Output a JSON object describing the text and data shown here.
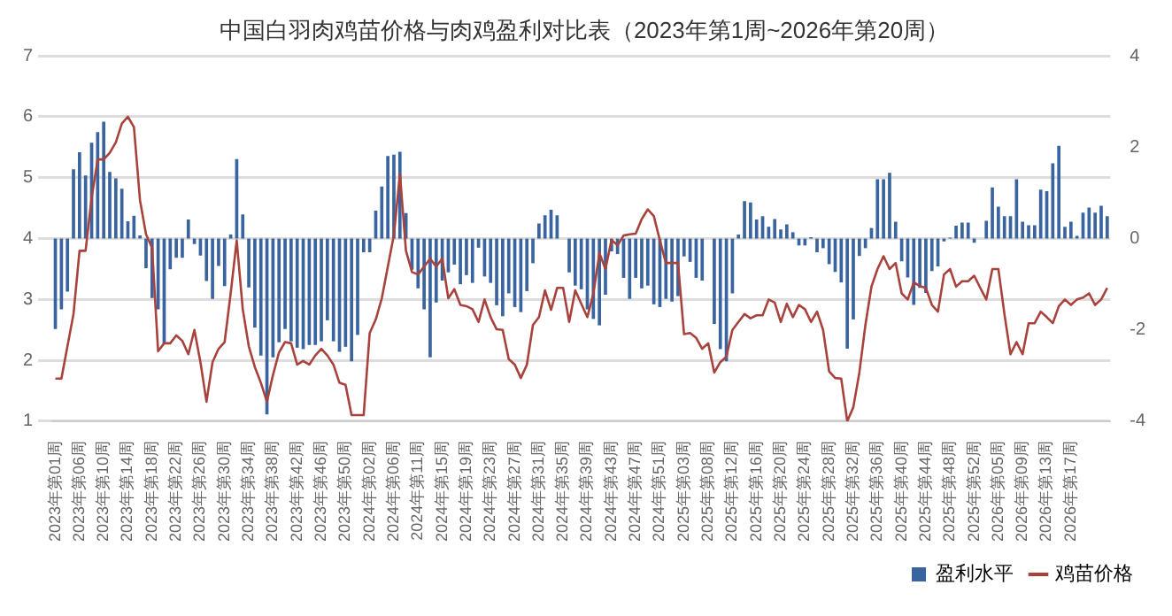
{
  "chart_data": {
    "type": "bar",
    "title": "中国白羽肉鸡苗价格与肉鸡盈利对比表（2023年第1周~2026年第20周）",
    "categories": [
      "2023年第01周",
      null,
      null,
      null,
      "2023年第06周",
      null,
      null,
      null,
      "2023年第10周",
      null,
      null,
      null,
      "2023年第14周",
      null,
      null,
      null,
      "2023年第18周",
      null,
      null,
      null,
      "2023年第22周",
      null,
      null,
      null,
      "2023年第26周",
      null,
      null,
      null,
      "2023年第30周",
      null,
      null,
      null,
      "2023年第34周",
      null,
      null,
      null,
      "2023年第38周",
      null,
      null,
      null,
      "2023年第42周",
      null,
      null,
      null,
      "2023年第46周",
      null,
      null,
      null,
      "2023年第50周",
      null,
      null,
      null,
      "2024年第02周",
      null,
      null,
      null,
      "2024年第06周",
      null,
      null,
      null,
      "2024年第11周",
      null,
      null,
      null,
      "2024年第15周",
      null,
      null,
      null,
      "2024年第19周",
      null,
      null,
      null,
      "2024年第23周",
      null,
      null,
      null,
      "2024年第27周",
      null,
      null,
      null,
      "2024年第31周",
      null,
      null,
      null,
      "2024年第35周",
      null,
      null,
      null,
      "2024年第39周",
      null,
      null,
      null,
      "2024年第43周",
      null,
      null,
      null,
      "2024年第47周",
      null,
      null,
      null,
      "2024年第51周",
      null,
      null,
      null,
      "2025年第03周",
      null,
      null,
      null,
      "2025年第08周",
      null,
      null,
      null,
      "2025年第12周",
      null,
      null,
      null,
      "2025年第16周",
      null,
      null,
      null,
      "2025年第20周",
      null,
      null,
      null,
      "2025年第24周",
      null,
      null,
      null,
      "2025年第28周",
      null,
      null,
      null,
      "2025年第32周",
      null,
      null,
      null,
      "2025年第36周",
      null,
      null,
      null,
      "2025年第40周",
      null,
      null,
      null,
      "2025年第44周",
      null,
      null,
      null,
      "2025年第48周",
      null,
      null,
      null,
      "2025年第52周",
      null,
      null,
      null,
      "2026年第05周",
      null,
      null,
      null,
      "2026年第09周",
      null,
      null,
      null,
      "2026年第13周",
      null,
      null,
      null,
      "2026年第17周",
      null,
      null,
      null,
      null,
      null,
      null
    ],
    "series": [
      {
        "name": "盈利水平",
        "axis": "y2",
        "color": "#3a64a0",
        "values": [
          -1.98,
          -1.55,
          -1.16,
          1.52,
          1.89,
          1.38,
          2.1,
          2.33,
          2.56,
          1.46,
          1.32,
          1.09,
          0.38,
          0.5,
          0.07,
          -0.65,
          -1.3,
          -1.55,
          -2.31,
          -0.67,
          -0.42,
          -0.42,
          0.42,
          -0.12,
          -0.37,
          -0.93,
          -1.32,
          -0.6,
          -1.04,
          0.09,
          1.74,
          0.53,
          -1.07,
          -1.95,
          -2.56,
          -3.85,
          -2.6,
          -2.27,
          -1.98,
          -2.25,
          -2.39,
          -2.42,
          -2.33,
          -2.33,
          -2.25,
          -1.79,
          -2.25,
          -2.48,
          -2.37,
          -2.69,
          -2.11,
          -0.3,
          -0.3,
          0.61,
          1.14,
          1.81,
          1.84,
          1.9,
          0.56,
          -0.68,
          -1.09,
          -1.55,
          -2.6,
          -1.4,
          -0.92,
          -0.74,
          -0.57,
          -1.0,
          -0.8,
          -0.97,
          -0.2,
          -0.83,
          -0.97,
          -1.46,
          -1.7,
          -1.2,
          -1.5,
          -1.61,
          -1.15,
          -0.54,
          0.33,
          0.51,
          0.63,
          0.51,
          0,
          -0.74,
          -1.03,
          -1.11,
          -1.55,
          -1.76,
          -1.9,
          -1.23,
          -0.28,
          -0.34,
          -0.86,
          -1.32,
          -0.86,
          -1.09,
          -1.03,
          -1.44,
          -1.5,
          -1.32,
          -1.38,
          -1.26,
          -0.39,
          -0.51,
          -0.86,
          -0.92,
          0,
          -1.87,
          -2.42,
          -2.69,
          -1.2,
          0.09,
          0.82,
          0.79,
          0.42,
          0.49,
          0.26,
          0.43,
          0.2,
          0.31,
          0.14,
          -0.15,
          -0.15,
          0.03,
          -0.3,
          -0.21,
          -0.56,
          -0.73,
          -0.96,
          -2.41,
          -1.77,
          -0.38,
          -0.21,
          0.23,
          1.3,
          1.3,
          1.44,
          0.37,
          -0.5,
          -0.85,
          -1.45,
          -1.08,
          -1.19,
          -0.71,
          -0.61,
          -0.06,
          0.02,
          0.28,
          0.35,
          0.35,
          -0.09,
          0,
          0.39,
          1.12,
          0.7,
          0.49,
          0.49,
          1.3,
          0.37,
          0.29,
          0.29,
          1.07,
          1.04,
          1.65,
          2.03,
          0.26,
          0.37,
          0.06,
          0.57,
          0.68,
          0.57,
          0.72,
          0.49
        ]
      },
      {
        "name": "鸡苗价格",
        "type": "line",
        "color": "#a8423c",
        "values": [
          1.7,
          1.7,
          2.23,
          2.76,
          3.8,
          3.8,
          4.67,
          5.3,
          5.3,
          5.41,
          5.58,
          5.89,
          6.0,
          5.83,
          4.63,
          4.07,
          3.85,
          2.15,
          2.28,
          2.28,
          2.41,
          2.32,
          2.1,
          2.5,
          1.97,
          1.32,
          1.97,
          2.19,
          2.3,
          3.1,
          3.97,
          2.84,
          2.23,
          1.89,
          1.63,
          1.32,
          1.76,
          2.13,
          2.3,
          2.28,
          1.93,
          1.99,
          1.93,
          2.08,
          2.19,
          2.08,
          1.93,
          1.63,
          1.6,
          1.1,
          1.1,
          1.1,
          2.45,
          2.67,
          3.02,
          3.54,
          4.06,
          5.06,
          3.8,
          3.45,
          3.41,
          3.54,
          3.67,
          3.54,
          3.67,
          3.02,
          3.17,
          2.91,
          2.89,
          2.84,
          2.63,
          3.0,
          2.71,
          2.51,
          2.5,
          2.02,
          1.93,
          1.71,
          1.93,
          2.58,
          2.71,
          3.15,
          2.83,
          3.19,
          3.19,
          2.63,
          3.15,
          2.93,
          2.71,
          3.1,
          3.76,
          3.5,
          3.98,
          3.89,
          4.05,
          4.07,
          4.08,
          4.32,
          4.48,
          4.37,
          3.97,
          3.6,
          3.6,
          3.6,
          2.43,
          2.45,
          2.37,
          2.19,
          2.28,
          1.8,
          1.97,
          2.06,
          2.5,
          2.63,
          2.76,
          2.69,
          2.74,
          2.74,
          3.0,
          2.95,
          2.63,
          2.93,
          2.71,
          2.91,
          2.84,
          2.63,
          2.8,
          2.5,
          1.82,
          1.71,
          1.7,
          1.0,
          1.23,
          1.8,
          2.58,
          3.21,
          3.5,
          3.71,
          3.5,
          3.6,
          3.1,
          3.0,
          3.28,
          3.22,
          3.19,
          2.91,
          2.8,
          3.41,
          3.5,
          3.21,
          3.3,
          3.3,
          3.39,
          3.19,
          3.0,
          3.5,
          3.5,
          2.76,
          2.1,
          2.3,
          2.1,
          2.61,
          2.61,
          2.8,
          2.71,
          2.61,
          2.89,
          3.0,
          2.91,
          3.0,
          3.03,
          3.1,
          2.91,
          3.0,
          3.19
        ]
      }
    ],
    "ylim": [
      1,
      7
    ],
    "yticks": [
      1,
      2,
      3,
      4,
      5,
      6,
      7
    ],
    "y2lim": [
      -4,
      4
    ],
    "y2ticks": [
      -4,
      -2,
      0,
      2,
      4
    ],
    "grid": "y",
    "legend": "bottom",
    "marker": "none",
    "line_style": "solid"
  }
}
